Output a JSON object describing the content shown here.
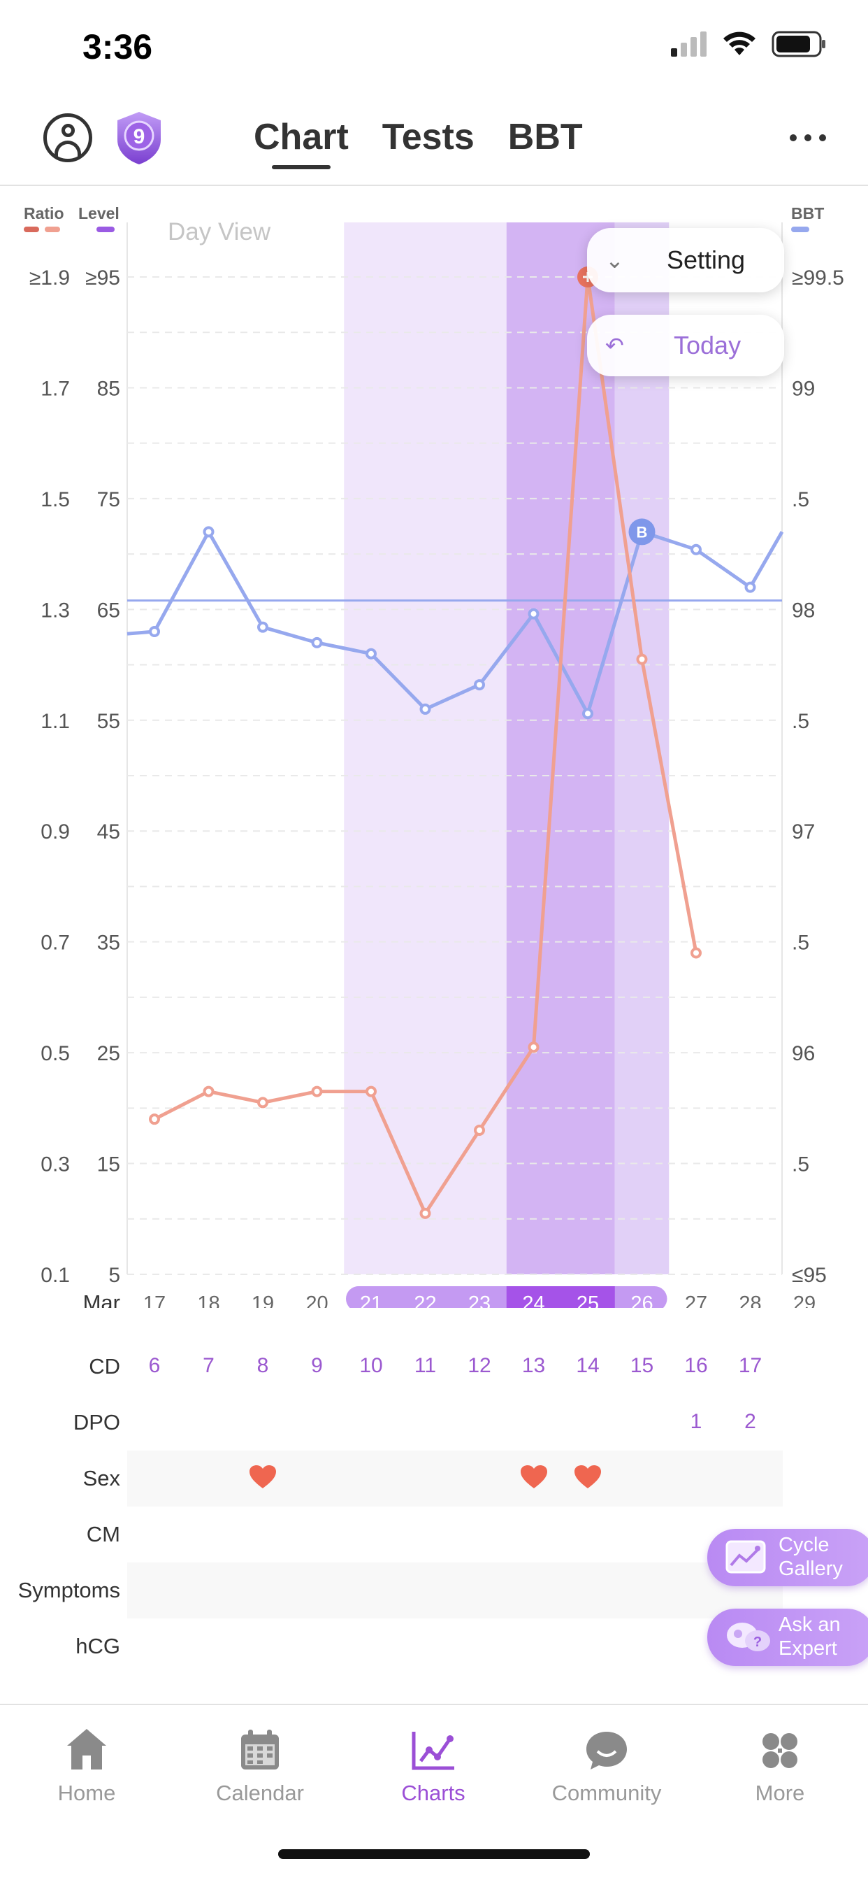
{
  "status_bar": {
    "time": "3:36"
  },
  "header": {
    "badge_level": "9",
    "tabs": [
      {
        "label": "Chart",
        "active": true
      },
      {
        "label": "Tests",
        "active": false
      },
      {
        "label": "BBT",
        "active": false
      }
    ]
  },
  "chart": {
    "view_label": "Day View",
    "legend": {
      "ratio": "Ratio",
      "level": "Level",
      "bbt": "BBT"
    },
    "ratio_ticks": [
      "≥1.9",
      "1.7",
      "1.5",
      "1.3",
      "1.1",
      "0.9",
      "0.7",
      "0.5",
      "0.3",
      "0.1"
    ],
    "level_ticks": [
      "≥95",
      "85",
      "75",
      "65",
      "55",
      "45",
      "35",
      "25",
      "15",
      "5"
    ],
    "bbt_ticks": [
      "≥99.5",
      "99",
      ".5",
      "98",
      ".5",
      "97",
      ".5",
      "96",
      ".5",
      "≤95"
    ],
    "month_label": "Mar",
    "dates": [
      "17",
      "18",
      "19",
      "20",
      "21",
      "22",
      "23",
      "24",
      "25",
      "26",
      "27",
      "28",
      "29"
    ],
    "cycle_days": [
      "6",
      "7",
      "8",
      "9",
      "10",
      "11",
      "12",
      "13",
      "14",
      "15",
      "16",
      "17",
      ""
    ],
    "dpo": [
      "",
      "",
      "",
      "",
      "",
      "",
      "",
      "",
      "",
      "",
      "1",
      "2",
      ""
    ],
    "sex": [
      false,
      false,
      true,
      false,
      false,
      false,
      false,
      true,
      true,
      false,
      false,
      false,
      false
    ],
    "row_labels": {
      "cd": "CD",
      "dpo": "DPO",
      "sex": "Sex",
      "cm": "CM",
      "symptoms": "Symptoms",
      "hcg": "hCG"
    }
  },
  "chart_data": {
    "type": "line",
    "x": [
      "Mar 17",
      "Mar 18",
      "Mar 19",
      "Mar 20",
      "Mar 21",
      "Mar 22",
      "Mar 23",
      "Mar 24",
      "Mar 25",
      "Mar 26",
      "Mar 27",
      "Mar 28",
      "Mar 29"
    ],
    "fertile_window": [
      "Mar 21",
      "Mar 26"
    ],
    "peak_days": [
      "Mar 24",
      "Mar 25"
    ],
    "series": [
      {
        "name": "Ratio",
        "axis": "ratio",
        "color": "#f0a090",
        "values": [
          0.38,
          0.43,
          0.41,
          0.43,
          0.43,
          0.21,
          0.36,
          0.51,
          1.9,
          1.21,
          0.68,
          null,
          null
        ]
      },
      {
        "name": "BBT",
        "axis": "bbt",
        "color": "#96a8ee",
        "values": [
          97.9,
          98.35,
          97.92,
          97.85,
          97.8,
          97.55,
          97.66,
          97.98,
          97.53,
          98.35,
          98.27,
          98.1,
          null
        ],
        "edge_values": {
          "left": 97.89,
          "right": 98.35
        },
        "coverline": 98.04
      }
    ],
    "axes": {
      "ratio": {
        "min": 0.1,
        "max": 1.9
      },
      "level": {
        "min": 5,
        "max": 95
      },
      "bbt": {
        "min": 95,
        "max": 99.5
      }
    },
    "grid": true
  },
  "popups": {
    "setting": "Setting",
    "today": "Today"
  },
  "floating": {
    "cycle_gallery": "Cycle\nGallery",
    "ask_expert": "Ask an\nExpert"
  },
  "nav": [
    {
      "label": "Home",
      "icon": "home-icon"
    },
    {
      "label": "Calendar",
      "icon": "calendar-icon"
    },
    {
      "label": "Charts",
      "icon": "charts-icon",
      "active": true
    },
    {
      "label": "Community",
      "icon": "community-icon"
    },
    {
      "label": "More",
      "icon": "more-icon"
    }
  ],
  "colors": {
    "accent": "#9b4fd6",
    "ratio_line": "#f0a090",
    "bbt_line": "#96a8ee",
    "fertile_light": "#f0e6fb",
    "fertile_mid": "#e1d0f7",
    "fertile_peak": "#d3b4f3",
    "heart": "#ef6650"
  }
}
